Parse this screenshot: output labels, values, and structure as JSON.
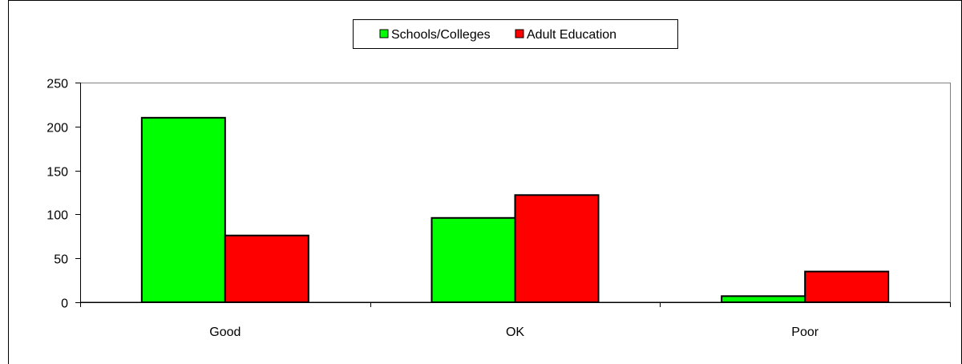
{
  "chart_data": {
    "type": "bar",
    "categories": [
      "Good",
      "OK",
      "Poor"
    ],
    "series": [
      {
        "name": "Schools/Colleges",
        "values": [
          210,
          96,
          7
        ],
        "color": "#00ff00"
      },
      {
        "name": "Adult Education",
        "values": [
          76,
          122,
          35
        ],
        "color": "#ff0000"
      }
    ],
    "ylim": [
      0,
      250
    ],
    "yticks": [
      0,
      50,
      100,
      150,
      200,
      250
    ],
    "grid": false,
    "legend_position": "top-center"
  }
}
